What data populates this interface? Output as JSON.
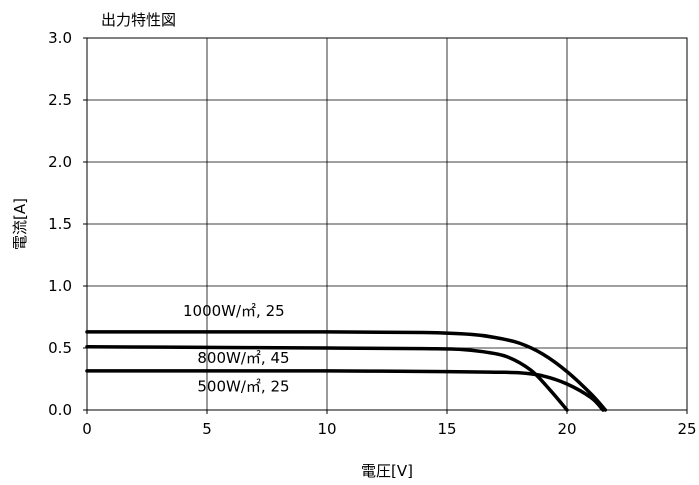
{
  "chart_data": {
    "type": "line",
    "title": "出力特性図",
    "xlabel": "電圧[V]",
    "ylabel": "電流[A]",
    "xlim": [
      0,
      25
    ],
    "ylim": [
      0,
      3.0
    ],
    "x_ticks": [
      "0",
      "5",
      "10",
      "15",
      "20",
      "25"
    ],
    "y_ticks": [
      "0.0",
      "0.5",
      "1.0",
      "1.5",
      "2.0",
      "2.5",
      "3.0"
    ],
    "grid": true,
    "legend": "none",
    "series": [
      {
        "name": "1000W/㎡, 25",
        "points": [
          [
            0,
            0.63
          ],
          [
            5,
            0.63
          ],
          [
            10,
            0.63
          ],
          [
            14,
            0.625
          ],
          [
            16,
            0.61
          ],
          [
            17,
            0.585
          ],
          [
            18,
            0.54
          ],
          [
            19,
            0.45
          ],
          [
            20,
            0.31
          ],
          [
            21,
            0.13
          ],
          [
            21.6,
            0.0
          ]
        ]
      },
      {
        "name": "800W/㎡, 45",
        "points": [
          [
            0,
            0.51
          ],
          [
            5,
            0.505
          ],
          [
            10,
            0.5
          ],
          [
            14,
            0.495
          ],
          [
            15.5,
            0.49
          ],
          [
            16.5,
            0.47
          ],
          [
            17.5,
            0.43
          ],
          [
            18.5,
            0.32
          ],
          [
            19.3,
            0.16
          ],
          [
            20,
            0.0
          ]
        ]
      },
      {
        "name": "500W/㎡, 25",
        "points": [
          [
            0,
            0.315
          ],
          [
            5,
            0.315
          ],
          [
            10,
            0.315
          ],
          [
            15,
            0.31
          ],
          [
            17,
            0.305
          ],
          [
            18,
            0.3
          ],
          [
            19,
            0.275
          ],
          [
            20,
            0.21
          ],
          [
            21,
            0.1
          ],
          [
            21.5,
            0.0
          ]
        ]
      }
    ],
    "annotations": [
      {
        "text": "1000W/㎡, 25",
        "x": 4.0,
        "y": 0.76
      },
      {
        "text": "800W/㎡, 45",
        "x": 4.6,
        "y": 0.38
      },
      {
        "text": "500W/㎡, 25",
        "x": 4.6,
        "y": 0.15
      }
    ]
  }
}
